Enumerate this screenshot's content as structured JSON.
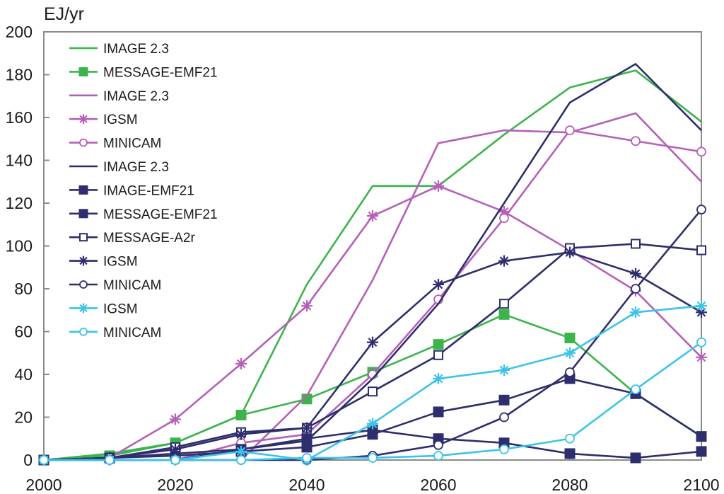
{
  "chart_data": {
    "type": "line",
    "ylabel": "EJ/yr",
    "xlim": [
      2000,
      2100
    ],
    "ylim": [
      0,
      200
    ],
    "x_ticks": [
      2000,
      2020,
      2040,
      2060,
      2080,
      2100
    ],
    "y_ticks": [
      0,
      20,
      40,
      60,
      80,
      100,
      120,
      140,
      160,
      180,
      200
    ],
    "grid": false,
    "legend_position": "top-left",
    "series": [
      {
        "name": "IMAGE 2.3",
        "color": "#3cb44b",
        "marker": "none",
        "x": [
          2000,
          2010,
          2020,
          2030,
          2040,
          2050,
          2060,
          2070,
          2080,
          2090,
          2100
        ],
        "y": [
          0,
          3,
          8,
          21,
          82,
          128,
          128,
          152,
          174,
          182,
          158
        ]
      },
      {
        "name": "MESSAGE-EMF21",
        "color": "#3cb44b",
        "marker": "filled-square",
        "x": [
          2000,
          2010,
          2020,
          2030,
          2040,
          2050,
          2060,
          2070,
          2080,
          2090,
          2100
        ],
        "y": [
          0,
          2,
          8,
          21,
          28.5,
          41,
          54,
          68,
          57,
          31,
          11
        ]
      },
      {
        "name": "IMAGE 2.3",
        "color": "#b560b8",
        "marker": "none",
        "x": [
          2000,
          2010,
          2020,
          2030,
          2040,
          2050,
          2060,
          2070,
          2080,
          2090,
          2100
        ],
        "y": [
          0,
          0,
          0,
          0,
          30,
          84,
          148,
          154,
          153,
          162,
          130
        ]
      },
      {
        "name": "IGSM",
        "color": "#b560b8",
        "marker": "asterisk",
        "x": [
          2000,
          2010,
          2020,
          2030,
          2040,
          2050,
          2060,
          2070,
          2080,
          2090,
          2100
        ],
        "y": [
          0,
          1,
          19,
          45,
          72,
          114,
          128,
          116,
          98,
          79,
          48
        ]
      },
      {
        "name": "MINICAM",
        "color": "#b560b8",
        "marker": "open-circle",
        "x": [
          2000,
          2010,
          2020,
          2030,
          2040,
          2050,
          2060,
          2070,
          2080,
          2090,
          2100
        ],
        "y": [
          0,
          0,
          0,
          8,
          12,
          40,
          75,
          113,
          154,
          149,
          144
        ]
      },
      {
        "name": "IMAGE 2.3",
        "color": "#2e2e6e",
        "marker": "none",
        "x": [
          2000,
          2010,
          2020,
          2030,
          2040,
          2050,
          2060,
          2070,
          2080,
          2090,
          2100
        ],
        "y": [
          0,
          0,
          0,
          5,
          9,
          38,
          73,
          120,
          167,
          185,
          154
        ]
      },
      {
        "name": "IMAGE-EMF21",
        "color": "#2e2e6e",
        "marker": "filled-square",
        "x": [
          2000,
          2010,
          2020,
          2030,
          2040,
          2050,
          2060,
          2070,
          2080,
          2090,
          2100
        ],
        "y": [
          0,
          1,
          3,
          5,
          10,
          14,
          10,
          8,
          3,
          1,
          4
        ]
      },
      {
        "name": "MESSAGE-EMF21",
        "color": "#2e2e6e",
        "marker": "filled-square",
        "x": [
          2000,
          2010,
          2020,
          2030,
          2040,
          2050,
          2060,
          2070,
          2080,
          2090,
          2100
        ],
        "y": [
          0,
          1,
          2,
          4,
          6,
          12,
          22.5,
          28,
          38,
          31,
          11
        ]
      },
      {
        "name": "MESSAGE-A2r",
        "color": "#2e2e6e",
        "marker": "open-square",
        "x": [
          2000,
          2010,
          2020,
          2030,
          2040,
          2050,
          2060,
          2070,
          2080,
          2090,
          2100
        ],
        "y": [
          0,
          1,
          6,
          13,
          15,
          32,
          49,
          73,
          99,
          101,
          98
        ]
      },
      {
        "name": "IGSM",
        "color": "#2e2e6e",
        "marker": "asterisk",
        "x": [
          2000,
          2010,
          2020,
          2030,
          2040,
          2050,
          2060,
          2070,
          2080,
          2090,
          2100
        ],
        "y": [
          0,
          1,
          5,
          12,
          15,
          55,
          82,
          93,
          97,
          87,
          69
        ]
      },
      {
        "name": "MINICAM",
        "color": "#2e2e6e",
        "marker": "open-circle",
        "x": [
          2000,
          2010,
          2020,
          2030,
          2040,
          2050,
          2060,
          2070,
          2080,
          2090,
          2100
        ],
        "y": [
          0,
          0,
          0,
          0,
          0,
          2,
          7,
          20,
          41,
          80,
          117
        ]
      },
      {
        "name": "IGSM",
        "color": "#3cc3ea",
        "marker": "asterisk",
        "x": [
          2000,
          2010,
          2020,
          2030,
          2040,
          2050,
          2060,
          2070,
          2080,
          2090,
          2100
        ],
        "y": [
          0,
          0,
          0,
          4,
          0,
          17,
          38,
          42,
          50,
          69,
          72
        ]
      },
      {
        "name": "MINICAM",
        "color": "#3cc3ea",
        "marker": "open-circle",
        "x": [
          2000,
          2010,
          2020,
          2030,
          2040,
          2050,
          2060,
          2070,
          2080,
          2090,
          2100
        ],
        "y": [
          0,
          0,
          0,
          0,
          1,
          1,
          2,
          5,
          10,
          33,
          55
        ]
      }
    ]
  }
}
